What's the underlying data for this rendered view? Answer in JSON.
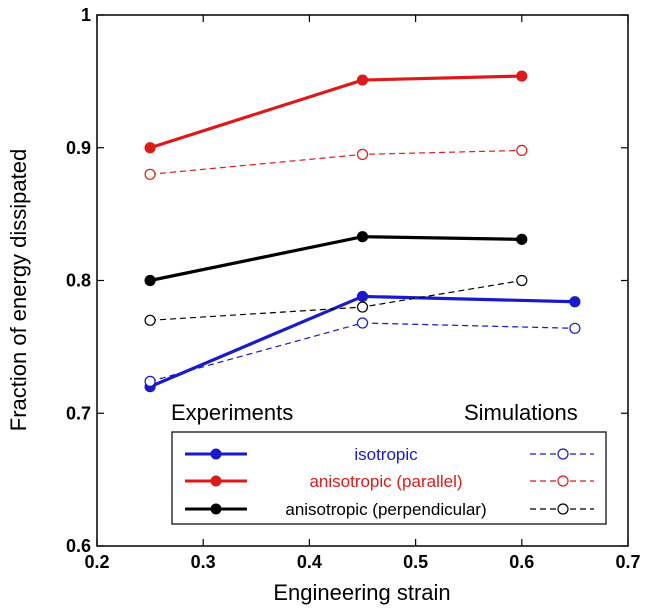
{
  "chart_data": {
    "type": "line",
    "xlabel": "Engineering strain",
    "ylabel": "Fraction of energy dissipated",
    "xlim": [
      0.2,
      0.7
    ],
    "ylim": [
      0.6,
      1.0
    ],
    "xticks": [
      "0.2",
      "0.3",
      "0.4",
      "0.5",
      "0.6",
      "0.7"
    ],
    "yticks": [
      "0.6",
      "0.7",
      "0.8",
      "0.9",
      "1"
    ],
    "grid": false,
    "legend_position": "bottom-center",
    "annotations": {
      "left": "Experiments",
      "right": "Simulations"
    },
    "series": [
      {
        "name": "isotropic",
        "kind": "experiment",
        "color": "#1a1acc",
        "style": "solid",
        "marker": "filled",
        "x": [
          0.25,
          0.45,
          0.65
        ],
        "y": [
          0.72,
          0.788,
          0.784
        ]
      },
      {
        "name": "anisotropic (parallel)",
        "kind": "experiment",
        "color": "#dd1a1a",
        "style": "solid",
        "marker": "filled",
        "x": [
          0.25,
          0.45,
          0.6
        ],
        "y": [
          0.9,
          0.951,
          0.954
        ]
      },
      {
        "name": "anisotropic (perpendicular)",
        "kind": "experiment",
        "color": "#000000",
        "style": "solid",
        "marker": "filled",
        "x": [
          0.25,
          0.45,
          0.6
        ],
        "y": [
          0.8,
          0.833,
          0.831
        ]
      },
      {
        "name": "isotropic",
        "kind": "simulation",
        "color": "#1a1acc",
        "style": "dashed",
        "marker": "open",
        "x": [
          0.25,
          0.45,
          0.65
        ],
        "y": [
          0.724,
          0.768,
          0.764
        ]
      },
      {
        "name": "anisotropic (parallel)",
        "kind": "simulation",
        "color": "#dd1a1a",
        "style": "dashed",
        "marker": "open",
        "x": [
          0.25,
          0.45,
          0.6
        ],
        "y": [
          0.88,
          0.895,
          0.898
        ]
      },
      {
        "name": "anisotropic (perpendicular)",
        "kind": "simulation",
        "color": "#000000",
        "style": "dashed",
        "marker": "open",
        "x": [
          0.25,
          0.45,
          0.6
        ],
        "y": [
          0.77,
          0.78,
          0.8
        ]
      }
    ],
    "legend": [
      {
        "label": "isotropic",
        "color": "#1a1acc"
      },
      {
        "label": "anisotropic (parallel)",
        "color": "#dd1a1a"
      },
      {
        "label": "anisotropic (perpendicular)",
        "color": "#000000"
      }
    ]
  }
}
